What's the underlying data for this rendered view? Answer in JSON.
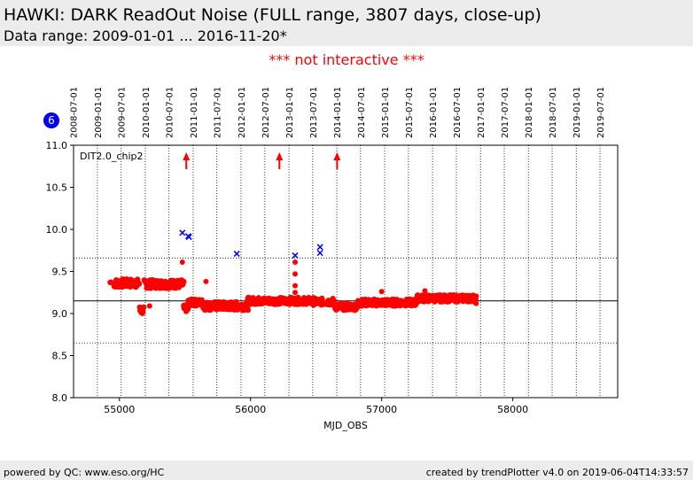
{
  "header": {
    "title": "HAWKI: DARK ReadOut Noise (FULL range, 3807 days, close-up)",
    "subtitle": "Data range: 2009-01-01 ... 2016-11-20*"
  },
  "notice": "*** not interactive ***",
  "badge": "6",
  "footer": {
    "left": "powered by QC: www.eso.org/HC",
    "right": "created by trendPlotter v4.0 on 2019-06-04T14:33:57"
  },
  "colors": {
    "data": "#ff0000",
    "outlier": "#0000ff",
    "badge": "#0000ee"
  },
  "chart_data": {
    "type": "scatter",
    "xlabel": "MJD_OBS",
    "ylabel": "",
    "xlim": [
      54650,
      58800
    ],
    "ylim": [
      8.0,
      11.0
    ],
    "x_ticks": [
      55000,
      56000,
      57000,
      58000
    ],
    "y_ticks": [
      "8.0",
      "8.5",
      "9.0",
      "9.5",
      "10.0",
      "10.5",
      "11.0"
    ],
    "legend": "DIT2.0_chip2",
    "reference_line": 9.15,
    "threshold_lines": [
      8.65,
      9.66
    ],
    "date_ticks": [
      {
        "mjd": 54648,
        "label": "2008-07-01"
      },
      {
        "mjd": 54832,
        "label": "2009-01-01"
      },
      {
        "mjd": 55013,
        "label": "2009-07-01"
      },
      {
        "mjd": 55197,
        "label": "2010-01-01"
      },
      {
        "mjd": 55378,
        "label": "2010-07-01"
      },
      {
        "mjd": 55562,
        "label": "2011-01-01"
      },
      {
        "mjd": 55743,
        "label": "2011-07-01"
      },
      {
        "mjd": 55927,
        "label": "2012-01-01"
      },
      {
        "mjd": 56109,
        "label": "2012-07-01"
      },
      {
        "mjd": 56293,
        "label": "2013-01-01"
      },
      {
        "mjd": 56474,
        "label": "2013-07-01"
      },
      {
        "mjd": 56658,
        "label": "2014-01-01"
      },
      {
        "mjd": 56839,
        "label": "2014-07-01"
      },
      {
        "mjd": 57023,
        "label": "2015-01-01"
      },
      {
        "mjd": 57204,
        "label": "2015-07-01"
      },
      {
        "mjd": 57388,
        "label": "2016-01-01"
      },
      {
        "mjd": 57570,
        "label": "2016-07-01"
      },
      {
        "mjd": 57754,
        "label": "2017-01-01"
      },
      {
        "mjd": 57935,
        "label": "2017-07-01"
      },
      {
        "mjd": 58119,
        "label": "2018-01-01"
      },
      {
        "mjd": 58300,
        "label": "2018-07-01"
      },
      {
        "mjd": 58484,
        "label": "2019-01-01"
      },
      {
        "mjd": 58665,
        "label": "2019-07-01"
      }
    ],
    "series": [
      {
        "name": "data",
        "segments": [
          {
            "x0": 54930,
            "x1": 54935,
            "y": 9.37,
            "spread": 0.01
          },
          {
            "x0": 54960,
            "x1": 55150,
            "y": 9.36,
            "spread": 0.05
          },
          {
            "x0": 55155,
            "x1": 55185,
            "y": 9.04,
            "spread": 0.05
          },
          {
            "x0": 55190,
            "x1": 55490,
            "y": 9.35,
            "spread": 0.05
          },
          {
            "x0": 55490,
            "x1": 55525,
            "y": 9.06,
            "spread": 0.04
          },
          {
            "x0": 55525,
            "x1": 55640,
            "y": 9.13,
            "spread": 0.04
          },
          {
            "x0": 55640,
            "x1": 55980,
            "y": 9.09,
            "spread": 0.05
          },
          {
            "x0": 55980,
            "x1": 56480,
            "y": 9.15,
            "spread": 0.04
          },
          {
            "x0": 56480,
            "x1": 56640,
            "y": 9.14,
            "spread": 0.04
          },
          {
            "x0": 56640,
            "x1": 56820,
            "y": 9.08,
            "spread": 0.04
          },
          {
            "x0": 56820,
            "x1": 57260,
            "y": 9.13,
            "spread": 0.04
          },
          {
            "x0": 57260,
            "x1": 57720,
            "y": 9.18,
            "spread": 0.04
          }
        ],
        "points": [
          {
            "x": 55480,
            "y": 9.61
          },
          {
            "x": 55230,
            "y": 9.09
          },
          {
            "x": 55660,
            "y": 9.38
          },
          {
            "x": 56340,
            "y": 9.61
          },
          {
            "x": 56340,
            "y": 9.47
          },
          {
            "x": 56340,
            "y": 9.33
          },
          {
            "x": 56340,
            "y": 9.25
          },
          {
            "x": 57000,
            "y": 9.26
          },
          {
            "x": 57330,
            "y": 9.27
          },
          {
            "x": 57720,
            "y": 9.12
          }
        ]
      },
      {
        "name": "outliers",
        "points": [
          {
            "x": 55480,
            "y": 9.96
          },
          {
            "x": 55525,
            "y": 9.92
          },
          {
            "x": 55530,
            "y": 9.91
          },
          {
            "x": 55895,
            "y": 9.71
          },
          {
            "x": 56340,
            "y": 9.69
          },
          {
            "x": 56530,
            "y": 9.79
          },
          {
            "x": 56530,
            "y": 9.72
          }
        ]
      }
    ],
    "offscale_markers": [
      55510,
      56220,
      56660
    ]
  }
}
